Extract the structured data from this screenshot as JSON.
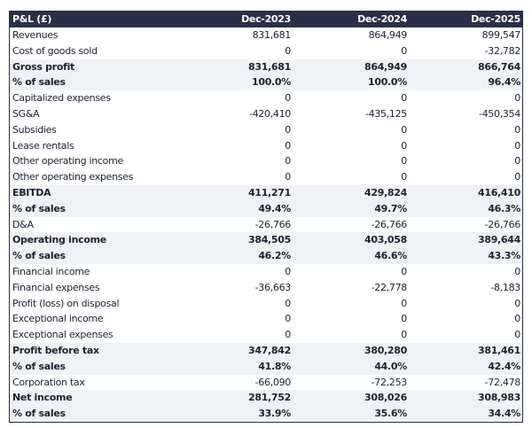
{
  "header": {
    "title": "P&L (£)",
    "columns": [
      "Dec-2023",
      "Dec-2024",
      "Dec-2025"
    ]
  },
  "colors": {
    "header_bg": "#2b2f47",
    "highlight_row_bg": "#eff2f5"
  },
  "rows": [
    {
      "label": "Revenues",
      "values": [
        "831,681",
        "864,949",
        "899,547"
      ],
      "bold": false
    },
    {
      "label": "Cost of goods sold",
      "values": [
        "0",
        "0",
        "-32,782"
      ],
      "bold": false
    },
    {
      "label": "Gross profit",
      "values": [
        "831,681",
        "864,949",
        "866,764"
      ],
      "bold": true
    },
    {
      "label": "% of sales",
      "values": [
        "100.0%",
        "100.0%",
        "96.4%"
      ],
      "bold": true
    },
    {
      "label": "Capitalized expenses",
      "values": [
        "0",
        "0",
        "0"
      ],
      "bold": false
    },
    {
      "label": "SG&A",
      "values": [
        "-420,410",
        "-435,125",
        "-450,354"
      ],
      "bold": false
    },
    {
      "label": "Subsidies",
      "values": [
        "0",
        "0",
        "0"
      ],
      "bold": false
    },
    {
      "label": "Lease rentals",
      "values": [
        "0",
        "0",
        "0"
      ],
      "bold": false
    },
    {
      "label": "Other operating income",
      "values": [
        "0",
        "0",
        "0"
      ],
      "bold": false
    },
    {
      "label": "Other operating expenses",
      "values": [
        "0",
        "0",
        "0"
      ],
      "bold": false
    },
    {
      "label": "EBITDA",
      "values": [
        "411,271",
        "429,824",
        "416,410"
      ],
      "bold": true
    },
    {
      "label": "% of sales",
      "values": [
        "49.4%",
        "49.7%",
        "46.3%"
      ],
      "bold": true
    },
    {
      "label": "D&A",
      "values": [
        "-26,766",
        "-26,766",
        "-26,766"
      ],
      "bold": false
    },
    {
      "label": "Operating income",
      "values": [
        "384,505",
        "403,058",
        "389,644"
      ],
      "bold": true
    },
    {
      "label": "% of sales",
      "values": [
        "46.2%",
        "46.6%",
        "43.3%"
      ],
      "bold": true
    },
    {
      "label": "Financial income",
      "values": [
        "0",
        "0",
        "0"
      ],
      "bold": false
    },
    {
      "label": "Financial expenses",
      "values": [
        "-36,663",
        "-22,778",
        "-8,183"
      ],
      "bold": false
    },
    {
      "label": "Profit (loss) on disposal",
      "values": [
        "0",
        "0",
        "0"
      ],
      "bold": false
    },
    {
      "label": "Exceptional income",
      "values": [
        "0",
        "0",
        "0"
      ],
      "bold": false
    },
    {
      "label": "Exceptional expenses",
      "values": [
        "0",
        "0",
        "0"
      ],
      "bold": false
    },
    {
      "label": "Profit before tax",
      "values": [
        "347,842",
        "380,280",
        "381,461"
      ],
      "bold": true
    },
    {
      "label": "% of sales",
      "values": [
        "41.8%",
        "44.0%",
        "42.4%"
      ],
      "bold": true
    },
    {
      "label": "Corporation tax",
      "values": [
        "-66,090",
        "-72,253",
        "-72,478"
      ],
      "bold": false
    },
    {
      "label": "Net income",
      "values": [
        "281,752",
        "308,026",
        "308,983"
      ],
      "bold": true
    },
    {
      "label": "% of sales",
      "values": [
        "33.9%",
        "35.6%",
        "34.4%"
      ],
      "bold": true
    }
  ]
}
